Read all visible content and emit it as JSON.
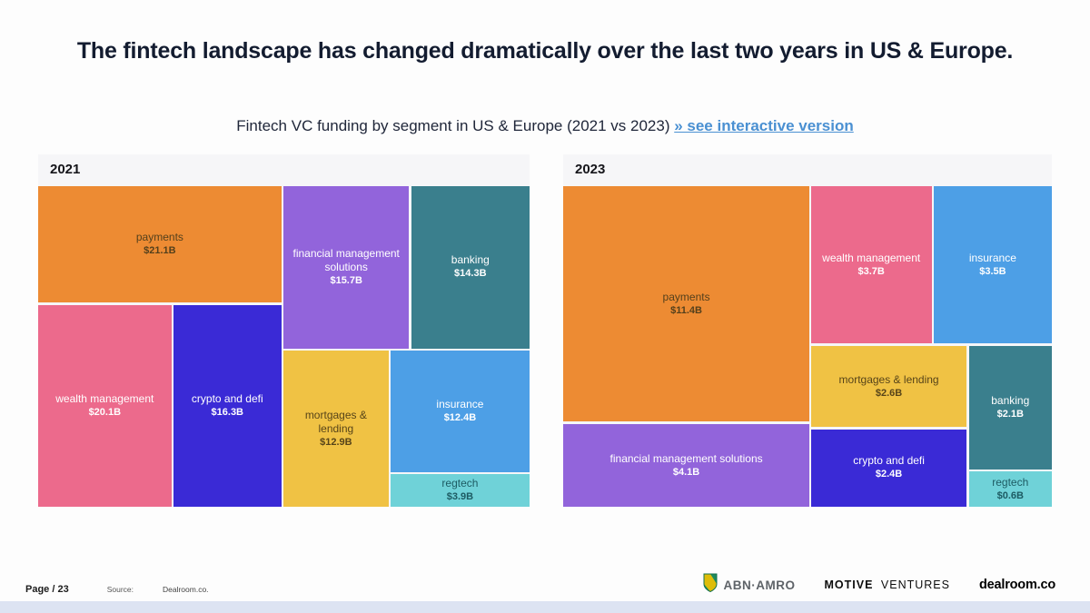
{
  "header": {
    "title": "The fintech landscape has changed dramatically over the last two years in US & Europe.",
    "subtitle": "Fintech VC funding by segment in US & Europe (2021 vs 2023)",
    "link_label": "» see interactive version",
    "link_color": "#4a90d2"
  },
  "chart_data": [
    {
      "type": "treemap",
      "title": "2021",
      "unit": "USD billions",
      "items": [
        {
          "id": "payments",
          "name": "payments",
          "value": 21.1,
          "label": "$21.1B",
          "color": "#ED8B33",
          "text": "#54401c",
          "rect": {
            "l": 0,
            "t": 0,
            "w": 49.5,
            "h": 36.2
          }
        },
        {
          "id": "wealth-management",
          "name": "wealth management",
          "value": 20.1,
          "label": "$20.1B",
          "color": "#EC6A8C",
          "text": "#ffffff",
          "rect": {
            "l": 0,
            "t": 37.1,
            "w": 27.1,
            "h": 62.9
          }
        },
        {
          "id": "crypto-and-defi",
          "name": "crypto and defi",
          "value": 16.3,
          "label": "$16.3B",
          "color": "#3A2AD6",
          "text": "#ffffff",
          "rect": {
            "l": 27.5,
            "t": 37.1,
            "w": 22.0,
            "h": 62.9
          }
        },
        {
          "id": "financial-management-solutions",
          "name": "financial management solutions",
          "value": 15.7,
          "label": "$15.7B",
          "color": "#9264DB",
          "text": "#ffffff",
          "rect": {
            "l": 49.9,
            "t": 0,
            "w": 25.6,
            "h": 50.6
          }
        },
        {
          "id": "banking",
          "name": "banking",
          "value": 14.3,
          "label": "$14.3B",
          "color": "#3A7F8D",
          "text": "#ffffff",
          "rect": {
            "l": 75.9,
            "t": 0,
            "w": 24.1,
            "h": 50.6
          }
        },
        {
          "id": "mortgages-lending",
          "name": "mortgages & lending",
          "value": 12.9,
          "label": "$12.9B",
          "color": "#F0C244",
          "text": "#574419",
          "rect": {
            "l": 49.9,
            "t": 51.3,
            "w": 21.4,
            "h": 48.7
          }
        },
        {
          "id": "insurance",
          "name": "insurance",
          "value": 12.4,
          "label": "$12.4B",
          "color": "#4D9FE6",
          "text": "#ffffff",
          "rect": {
            "l": 71.7,
            "t": 51.3,
            "w": 28.3,
            "h": 38.0
          }
        },
        {
          "id": "regtech",
          "name": "regtech",
          "value": 3.9,
          "label": "$3.9B",
          "color": "#6FD2D8",
          "text": "#1d5b63",
          "rect": {
            "l": 71.7,
            "t": 89.9,
            "w": 28.3,
            "h": 10.1
          }
        }
      ]
    },
    {
      "type": "treemap",
      "title": "2023",
      "unit": "USD billions",
      "items": [
        {
          "id": "payments",
          "name": "payments",
          "value": 11.4,
          "label": "$11.4B",
          "color": "#ED8B33",
          "text": "#54401c",
          "rect": {
            "l": 0,
            "t": 0,
            "w": 50.4,
            "h": 73.5
          }
        },
        {
          "id": "financial-management-solutions",
          "name": "financial management solutions",
          "value": 4.1,
          "label": "$4.1B",
          "color": "#9264DB",
          "text": "#ffffff",
          "rect": {
            "l": 0,
            "t": 74.2,
            "w": 50.4,
            "h": 25.8
          }
        },
        {
          "id": "wealth-management",
          "name": "wealth management",
          "value": 3.7,
          "label": "$3.7B",
          "color": "#EC6A8C",
          "text": "#ffffff",
          "rect": {
            "l": 50.7,
            "t": 0,
            "w": 24.7,
            "h": 49.0
          }
        },
        {
          "id": "insurance",
          "name": "insurance",
          "value": 3.5,
          "label": "$3.5B",
          "color": "#4D9FE6",
          "text": "#ffffff",
          "rect": {
            "l": 75.8,
            "t": 0,
            "w": 24.2,
            "h": 49.0
          }
        },
        {
          "id": "mortgages-lending",
          "name": "mortgages & lending",
          "value": 2.6,
          "label": "$2.6B",
          "color": "#F0C244",
          "text": "#574419",
          "rect": {
            "l": 50.7,
            "t": 49.9,
            "w": 31.9,
            "h": 25.2
          }
        },
        {
          "id": "crypto-and-defi",
          "name": "crypto and defi",
          "value": 2.4,
          "label": "$2.4B",
          "color": "#3A2AD6",
          "text": "#ffffff",
          "rect": {
            "l": 50.7,
            "t": 75.8,
            "w": 31.9,
            "h": 24.2
          }
        },
        {
          "id": "banking",
          "name": "banking",
          "value": 2.1,
          "label": "$2.1B",
          "color": "#3A7F8D",
          "text": "#ffffff",
          "rect": {
            "l": 83.0,
            "t": 49.9,
            "w": 17.0,
            "h": 38.4
          }
        },
        {
          "id": "regtech",
          "name": "regtech",
          "value": 0.6,
          "label": "$0.6B",
          "color": "#6FD2D8",
          "text": "#1d5b63",
          "rect": {
            "l": 83.0,
            "t": 89.0,
            "w": 17.0,
            "h": 11.0
          }
        }
      ]
    }
  ],
  "footer": {
    "page_label": "Page / 23",
    "source_label": "Source:",
    "source_value": "Dealroom.co.",
    "logos": {
      "abn_amro": "ABN·AMRO",
      "motive_bold": "MOTIVE",
      "motive_light": "VENTURES",
      "dealroom": "dealroom.co"
    }
  }
}
